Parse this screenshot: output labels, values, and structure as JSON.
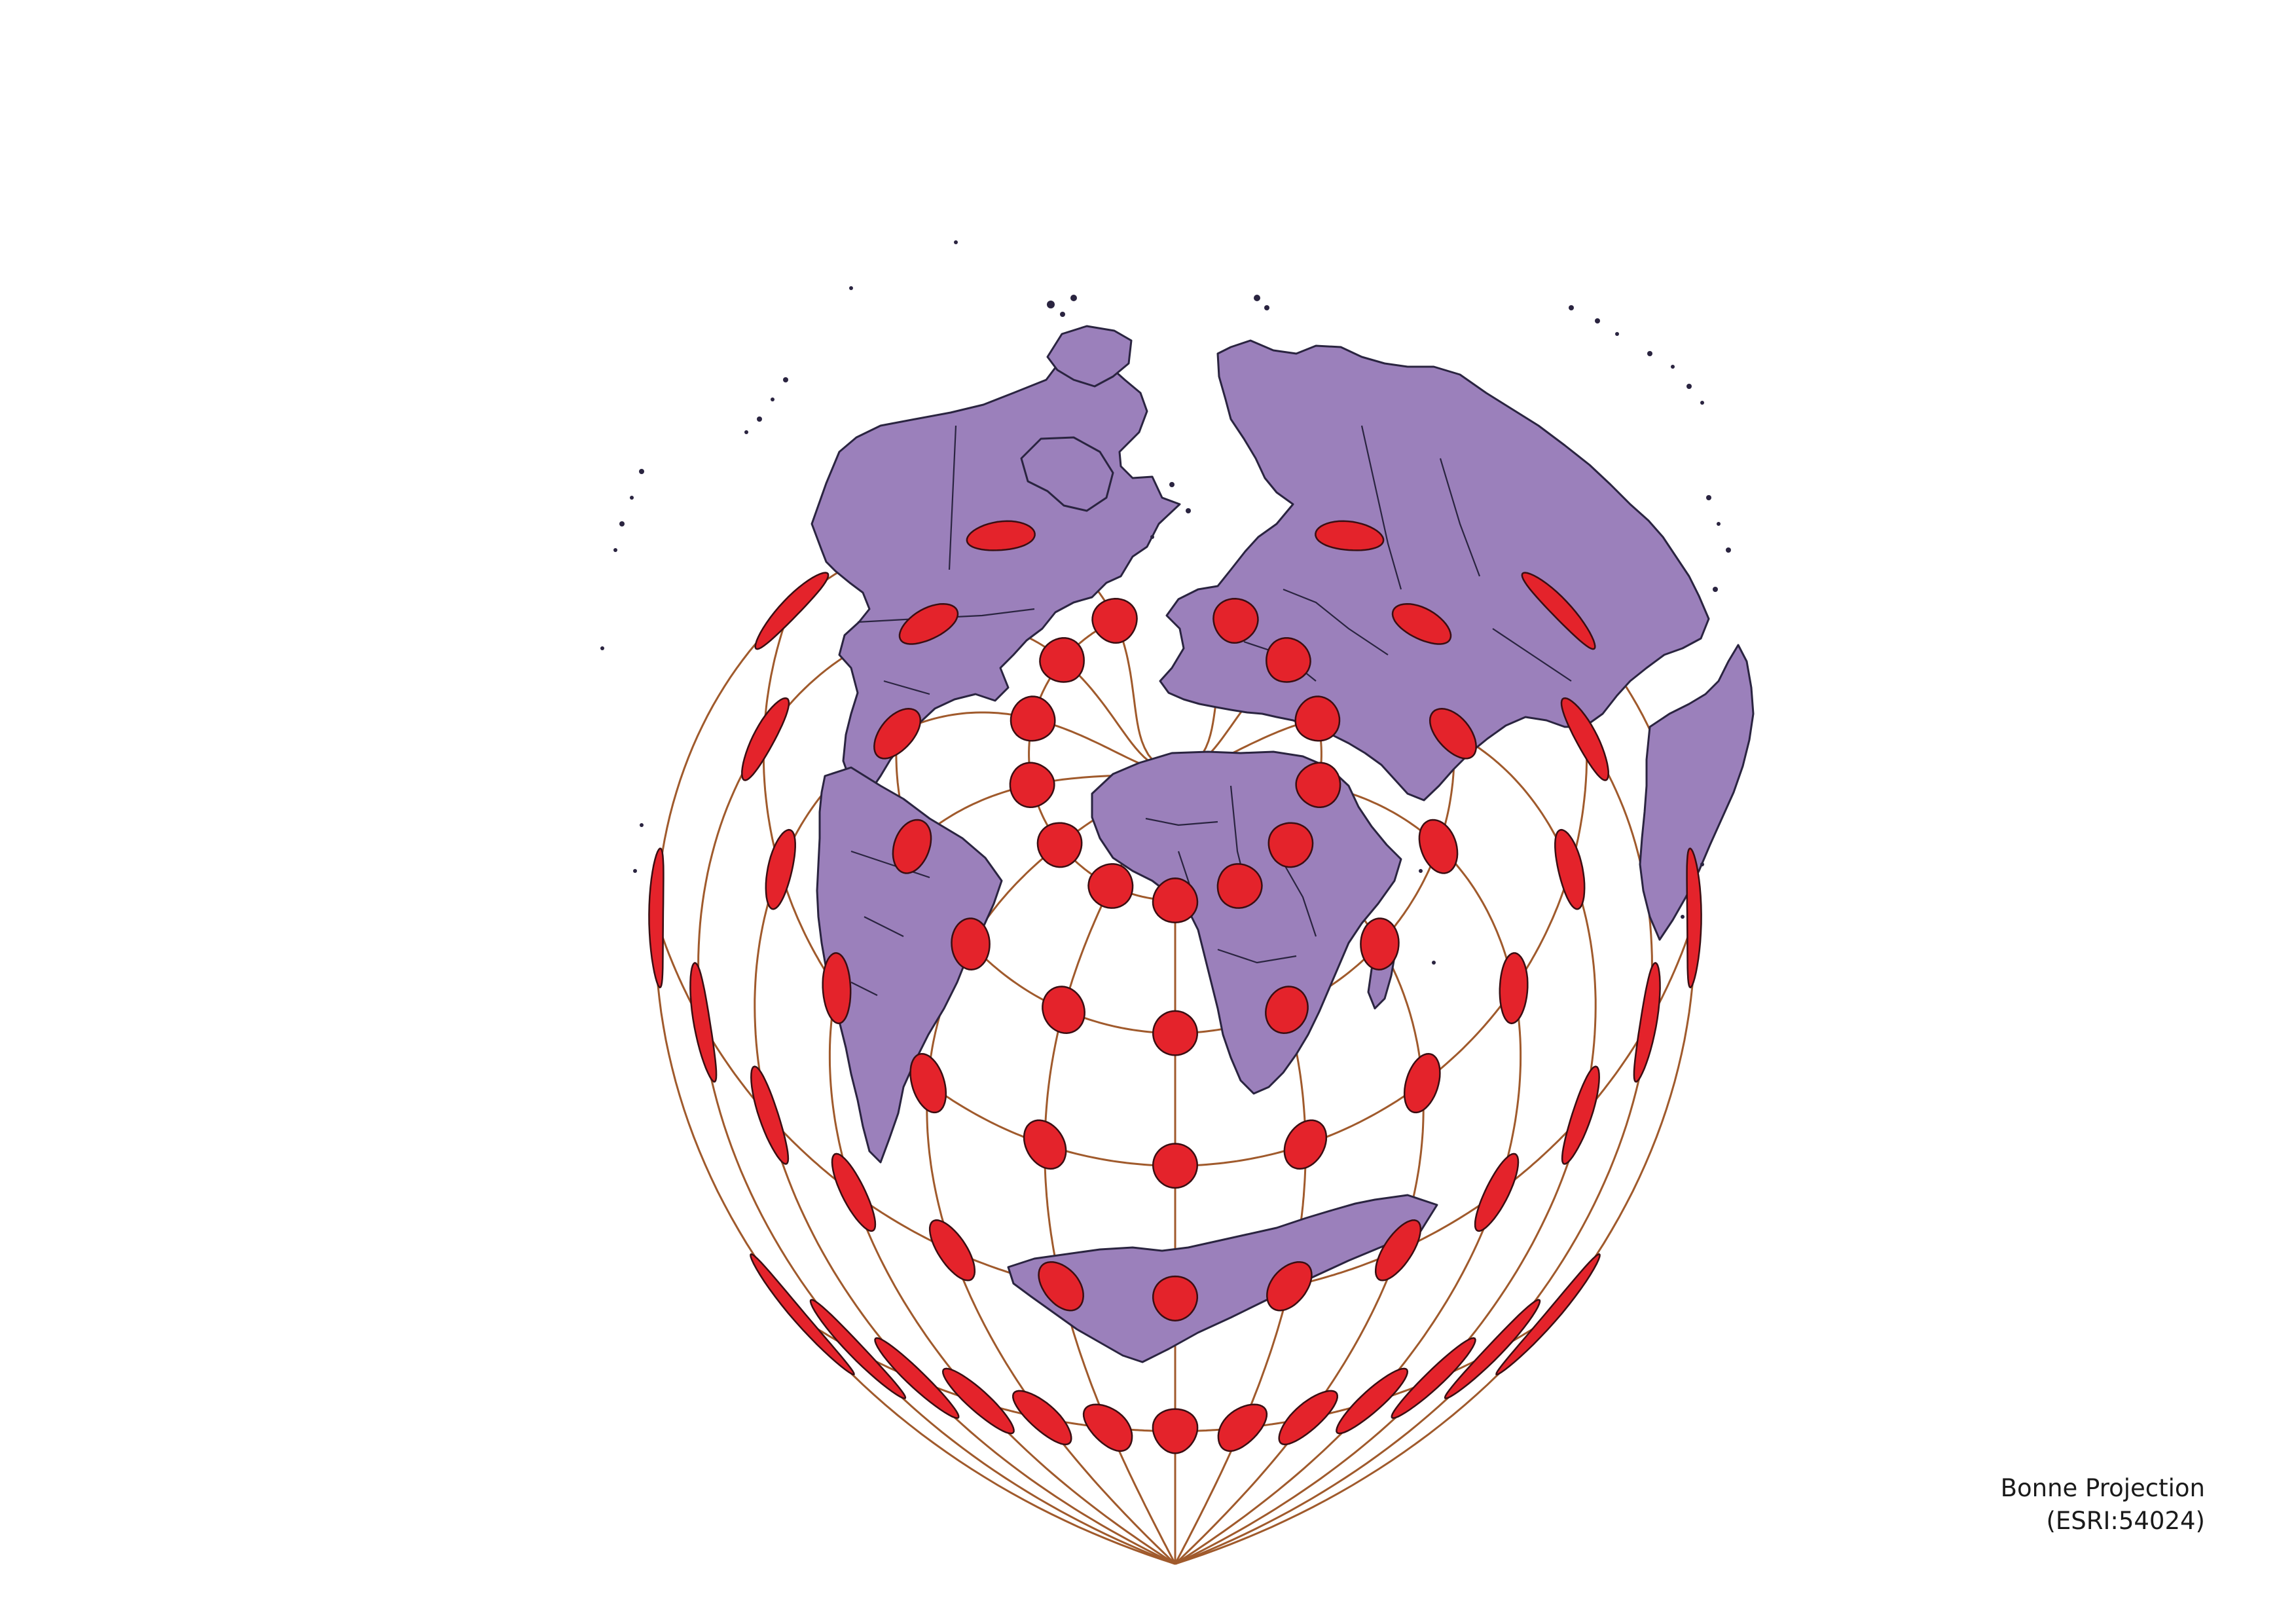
{
  "caption": {
    "line1": "Bonne Projection",
    "line2": "(ESRI:54024)"
  },
  "colors": {
    "land": "#9b80bb",
    "coastline": "#2a2440",
    "graticule": "#a05a2c",
    "tissot": "#e4232b",
    "background": "#ffffff"
  },
  "projection": {
    "name": "Bonne",
    "standard_parallel_deg": 60,
    "central_meridian_deg": 0
  },
  "graticule": {
    "meridians_deg": [
      -180,
      -150,
      -120,
      -90,
      -60,
      -30,
      0,
      30,
      60,
      90,
      120,
      150,
      180
    ],
    "parallels_deg": [
      -60,
      -30,
      0,
      30,
      60
    ]
  },
  "tissot_indicatrix": {
    "radius_deg": 5,
    "longitudes_deg": [
      -180,
      -150,
      -120,
      -90,
      -60,
      -30,
      0,
      30,
      60,
      90,
      120,
      150,
      180
    ],
    "latitudes_deg": [
      -60,
      -30,
      0,
      30,
      60
    ]
  }
}
